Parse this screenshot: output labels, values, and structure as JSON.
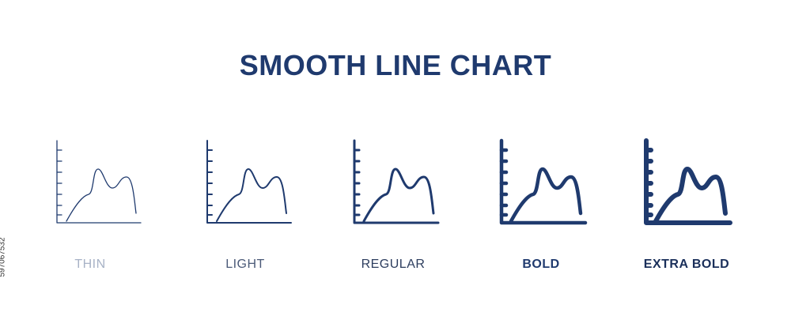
{
  "title": "SMOOTH LINE CHART",
  "variants": [
    "THIN",
    "LIGHT",
    "REGULAR",
    "BOLD",
    "EXTRA BOLD"
  ],
  "stock_id": "597067532"
}
